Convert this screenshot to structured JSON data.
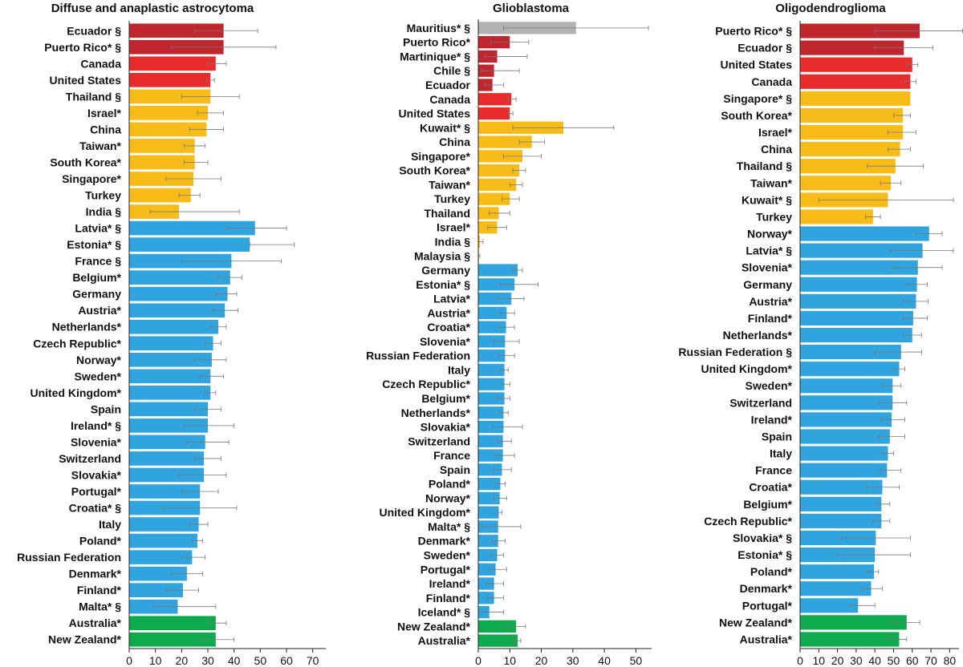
{
  "chart_data": [
    {
      "type": "bar",
      "orientation": "horizontal",
      "title": "Diffuse and anaplastic astrocytoma",
      "xlim": [
        0,
        75
      ],
      "xticks": [
        0,
        10,
        20,
        30,
        40,
        50,
        60,
        70
      ],
      "categories": [
        "Ecuador  §",
        "Puerto Rico* §",
        "Canada",
        "United States",
        "Thailand  §",
        "Israel*",
        "China",
        "Taiwan*",
        "South Korea*",
        "Singapore*",
        "Turkey",
        "India  §",
        "Latvia* §",
        "Estonia* §",
        "France  §",
        "Belgium*",
        "Germany",
        "Austria*",
        "Netherlands*",
        "Czech Republic*",
        "Norway*",
        "Sweden*",
        "United Kingdom*",
        "Spain",
        "Ireland* §",
        "Slovenia*",
        "Switzerland",
        "Slovakia*",
        "Portugal*",
        "Croatia* §",
        "Italy",
        "Poland*",
        "Russian Federation",
        "Denmark*",
        "Finland*",
        "Malta* §",
        "Australia*",
        "New Zealand*"
      ],
      "values": [
        36,
        36,
        33,
        31,
        31,
        30,
        29.5,
        25,
        25,
        24.5,
        23.5,
        19,
        48,
        46,
        39,
        38.5,
        37.5,
        36.5,
        34,
        32,
        31.5,
        31,
        31,
        30,
        30,
        29,
        28.5,
        28.5,
        27,
        27,
        26.5,
        26,
        24,
        22,
        20.5,
        18.5,
        33,
        33
      ],
      "ci_low": [
        25,
        16,
        30,
        29.5,
        20,
        26,
        23,
        21,
        21,
        14,
        19,
        8,
        37,
        46,
        20,
        34,
        33,
        32,
        31,
        29,
        25,
        27,
        29,
        25,
        21,
        22,
        25,
        19,
        20,
        13,
        23,
        24,
        20,
        16,
        14,
        9,
        30,
        28
      ],
      "ci_high": [
        49,
        56,
        37,
        32.5,
        42,
        36,
        36,
        29,
        30,
        35,
        27,
        42,
        60,
        63,
        58,
        43,
        41,
        41.5,
        37,
        35,
        37,
        36,
        33,
        35,
        40,
        38,
        35,
        37,
        34,
        41,
        30,
        28,
        29,
        28,
        26.5,
        33,
        37,
        40
      ],
      "colors": [
        "#c0262d",
        "#c0262d",
        "#e82b2b",
        "#e82b2b",
        "#f8bc19",
        "#f8bc19",
        "#f8bc19",
        "#f8bc19",
        "#f8bc19",
        "#f8bc19",
        "#f8bc19",
        "#f8bc19",
        "#2fa4de",
        "#2fa4de",
        "#2fa4de",
        "#2fa4de",
        "#2fa4de",
        "#2fa4de",
        "#2fa4de",
        "#2fa4de",
        "#2fa4de",
        "#2fa4de",
        "#2fa4de",
        "#2fa4de",
        "#2fa4de",
        "#2fa4de",
        "#2fa4de",
        "#2fa4de",
        "#2fa4de",
        "#2fa4de",
        "#2fa4de",
        "#2fa4de",
        "#2fa4de",
        "#2fa4de",
        "#2fa4de",
        "#2fa4de",
        "#0eaa4e",
        "#0eaa4e"
      ]
    },
    {
      "type": "bar",
      "orientation": "horizontal",
      "title": "Glioblastoma",
      "xlim": [
        0,
        55
      ],
      "xticks": [
        0,
        10,
        20,
        30,
        40,
        50
      ],
      "categories": [
        "Mauritius* §",
        "Puerto Rico*",
        "Martinique* §",
        "Chile  §",
        "Ecuador",
        "Canada",
        "United States",
        "Kuwait* §",
        "China",
        "Singapore*",
        "South Korea*",
        "Taiwan*",
        "Turkey",
        "Thailand",
        "Israel*",
        "India  §",
        "Malaysia  §",
        "Germany",
        "Estonia* §",
        "Latvia*",
        "Austria*",
        "Croatia*",
        "Slovenia*",
        "Russian Federation",
        "Italy",
        "Czech Republic*",
        "Belgium*",
        "Netherlands*",
        "Slovakia*",
        "Switzerland",
        "France",
        "Spain",
        "Poland*",
        "Norway*",
        "United Kingdom*",
        "Malta* §",
        "Denmark*",
        "Sweden*",
        "Portugal*",
        "Ireland*",
        "Finland*",
        "Iceland* §",
        "New Zealand*",
        "Australia*"
      ],
      "values": [
        31,
        10,
        6,
        5,
        4.5,
        10.5,
        10,
        27,
        17,
        14,
        13,
        12,
        10,
        6.5,
        6,
        0.5,
        0.2,
        12.5,
        11.5,
        10.5,
        9,
        8.8,
        8.5,
        8.5,
        8.3,
        8.3,
        8.3,
        8,
        8,
        7.8,
        7.8,
        7.5,
        7,
        6.8,
        6.5,
        6.3,
        6.3,
        6,
        5.5,
        5,
        5,
        3.5,
        12,
        12.5
      ],
      "ci_low": [
        8,
        4,
        2,
        1,
        2,
        9.5,
        9.5,
        11,
        13,
        8,
        11,
        10,
        7.5,
        3.5,
        3,
        0,
        0,
        11,
        7,
        6,
        7,
        6.5,
        5,
        6.5,
        7,
        7.5,
        6,
        6.5,
        4.5,
        6,
        5.5,
        5,
        5.5,
        5,
        6,
        1,
        4.5,
        4,
        3.5,
        2.5,
        3,
        1,
        9,
        11
      ],
      "ci_high": [
        54,
        16,
        15.5,
        13,
        8,
        12,
        11,
        43,
        21,
        20,
        15,
        14,
        13,
        10,
        9,
        1.5,
        0.5,
        14,
        19,
        14.5,
        11.5,
        11.5,
        13,
        11.5,
        9.5,
        10,
        10,
        9.5,
        14,
        10.5,
        11.5,
        10.5,
        8.5,
        9,
        7.5,
        13.5,
        8.5,
        8,
        9,
        8,
        8,
        8,
        15,
        13.5
      ],
      "colors": [
        "#b2b2b2",
        "#c0262d",
        "#c0262d",
        "#c0262d",
        "#c0262d",
        "#e82b2b",
        "#e82b2b",
        "#f8bc19",
        "#f8bc19",
        "#f8bc19",
        "#f8bc19",
        "#f8bc19",
        "#f8bc19",
        "#f8bc19",
        "#f8bc19",
        "#f8bc19",
        "#f8bc19",
        "#2fa4de",
        "#2fa4de",
        "#2fa4de",
        "#2fa4de",
        "#2fa4de",
        "#2fa4de",
        "#2fa4de",
        "#2fa4de",
        "#2fa4de",
        "#2fa4de",
        "#2fa4de",
        "#2fa4de",
        "#2fa4de",
        "#2fa4de",
        "#2fa4de",
        "#2fa4de",
        "#2fa4de",
        "#2fa4de",
        "#2fa4de",
        "#2fa4de",
        "#2fa4de",
        "#2fa4de",
        "#2fa4de",
        "#2fa4de",
        "#2fa4de",
        "#0eaa4e",
        "#0eaa4e"
      ]
    },
    {
      "type": "bar",
      "orientation": "horizontal",
      "title": "Oligodendroglioma",
      "xlim": [
        0,
        85
      ],
      "xticks": [
        0,
        10,
        20,
        30,
        40,
        50,
        60,
        70,
        80
      ],
      "categories": [
        "Puerto Rico* §",
        "Ecuador  §",
        "United States",
        "Canada",
        "Singapore* §",
        "South Korea*",
        "Israel*",
        "China",
        "Thailand  §",
        "Taiwan*",
        "Kuwait* §",
        "Turkey",
        "Norway*",
        "Latvia* §",
        "Slovenia*",
        "Germany",
        "Austria*",
        "Finland*",
        "Netherlands*",
        "Russian Federation  §",
        "United Kingdom*",
        "Sweden*",
        "Switzerland",
        "Ireland*",
        "Spain",
        "Italy",
        "France",
        "Croatia*",
        "Belgium*",
        "Czech Republic*",
        "Slovakia* §",
        "Estonia* §",
        "Poland*",
        "Denmark*",
        "Portugal*",
        "New Zealand*",
        "Australia*"
      ],
      "values": [
        64,
        55.5,
        60,
        59,
        59,
        55,
        55,
        53.5,
        51,
        48.5,
        47,
        39,
        69,
        65.5,
        63,
        62.5,
        62,
        60.5,
        60,
        54,
        53,
        49.5,
        49.5,
        49,
        48,
        47,
        46.5,
        44,
        43.5,
        43.5,
        40.5,
        40,
        39.5,
        38,
        31,
        57,
        53
      ],
      "ci_low": [
        40,
        40,
        57,
        56,
        null,
        50,
        47,
        47,
        36,
        43,
        10,
        35,
        62,
        48,
        50,
        57,
        55,
        55,
        55,
        40,
        50,
        44,
        42,
        43,
        42,
        44,
        43,
        36,
        41,
        39,
        22,
        20,
        36,
        33,
        27,
        50,
        47
      ],
      "ci_high": [
        87,
        71,
        63,
        62,
        null,
        59,
        62,
        59,
        66,
        54,
        82,
        43,
        76,
        82,
        76,
        68,
        68.5,
        68,
        65,
        65,
        56,
        54,
        57,
        56,
        56,
        50,
        54,
        53,
        48,
        48,
        59,
        59,
        42,
        44,
        40,
        64,
        57
      ],
      "colors": [
        "#c0262d",
        "#c0262d",
        "#e82b2b",
        "#e82b2b",
        "#f8bc19",
        "#f8bc19",
        "#f8bc19",
        "#f8bc19",
        "#f8bc19",
        "#f8bc19",
        "#f8bc19",
        "#f8bc19",
        "#2fa4de",
        "#2fa4de",
        "#2fa4de",
        "#2fa4de",
        "#2fa4de",
        "#2fa4de",
        "#2fa4de",
        "#2fa4de",
        "#2fa4de",
        "#2fa4de",
        "#2fa4de",
        "#2fa4de",
        "#2fa4de",
        "#2fa4de",
        "#2fa4de",
        "#2fa4de",
        "#2fa4de",
        "#2fa4de",
        "#2fa4de",
        "#2fa4de",
        "#2fa4de",
        "#2fa4de",
        "#2fa4de",
        "#0eaa4e",
        "#0eaa4e"
      ]
    }
  ]
}
